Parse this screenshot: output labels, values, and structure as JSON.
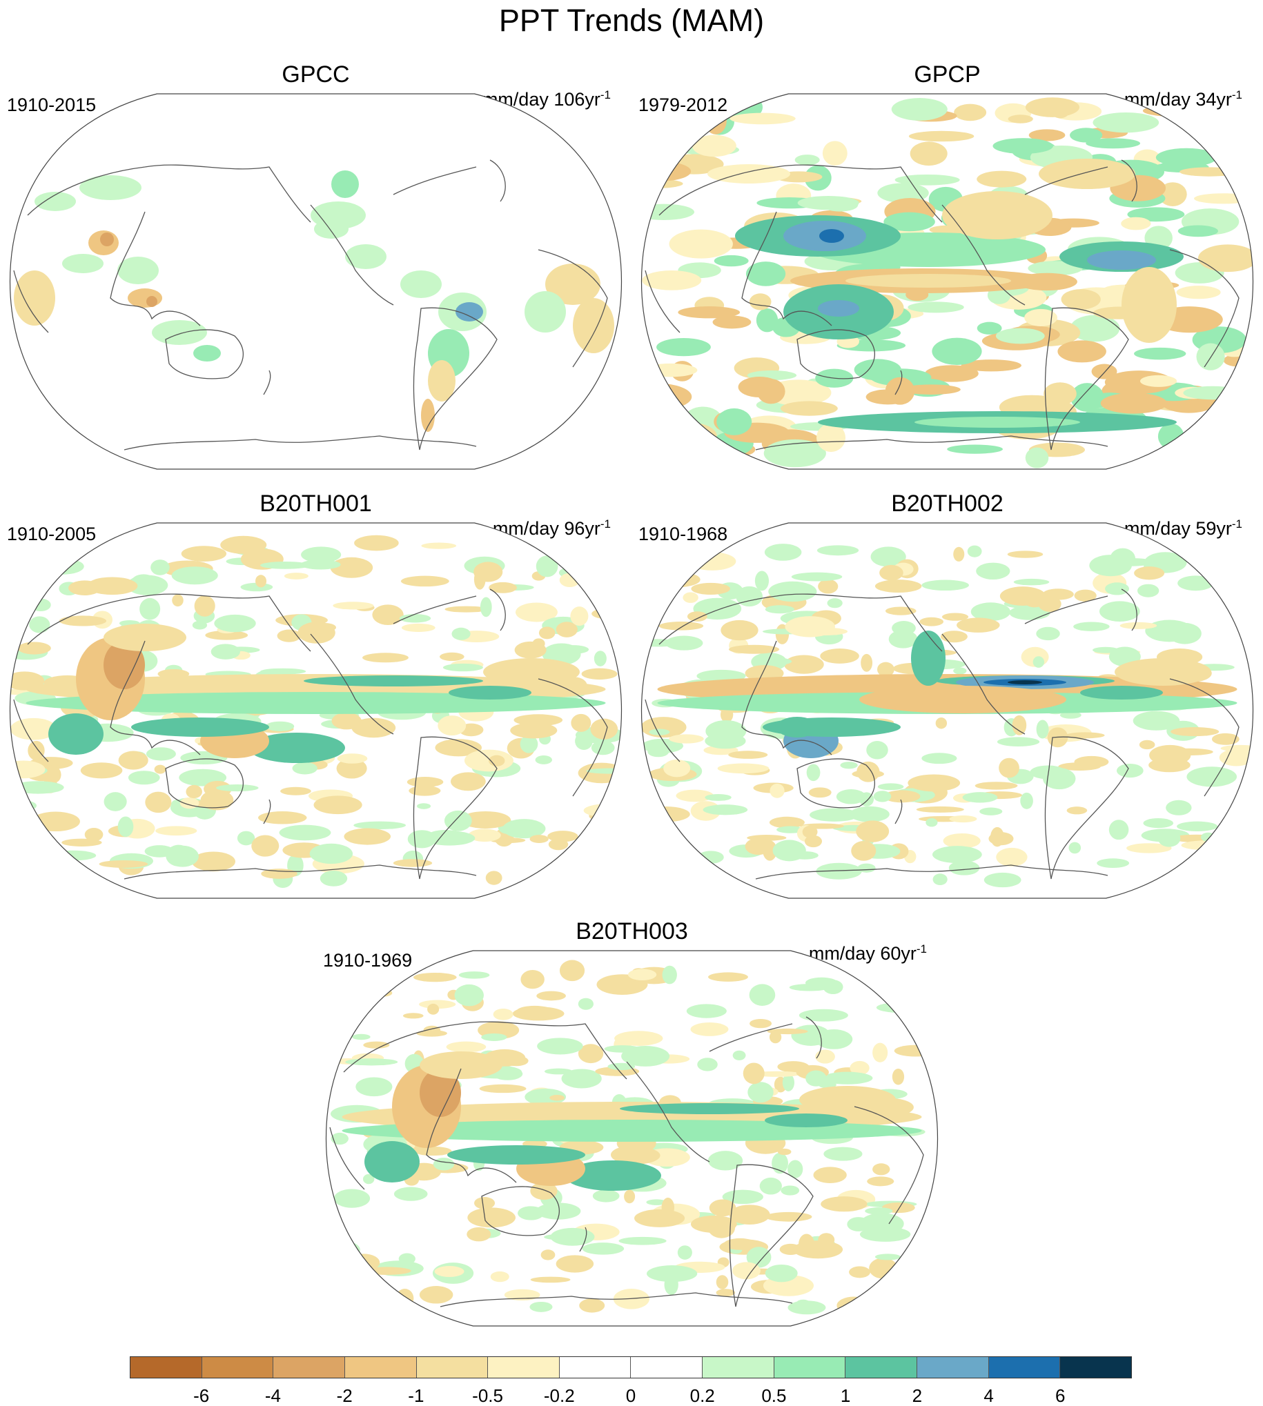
{
  "title": "PPT Trends (MAM)",
  "panels": [
    {
      "name": "GPCC",
      "period": "1910-2015",
      "units_prefix": "mm/day 106yr",
      "units_exp": "-1",
      "pattern": "gpcc"
    },
    {
      "name": "GPCP",
      "period": "1979-2012",
      "units_prefix": "mm/day 34yr",
      "units_exp": "-1",
      "pattern": "gpcp"
    },
    {
      "name": "B20TH001",
      "period": "1910-2005",
      "units_prefix": "mm/day 96yr",
      "units_exp": "-1",
      "pattern": "model"
    },
    {
      "name": "B20TH002",
      "period": "1910-1968",
      "units_prefix": "mm/day 59yr",
      "units_exp": "-1",
      "pattern": "model2"
    },
    {
      "name": "B20TH003",
      "period": "1910-1969",
      "units_prefix": "mm/day 60yr",
      "units_exp": "-1",
      "pattern": "model"
    }
  ],
  "colorbar": {
    "colors": [
      "#b5692a",
      "#cd8b45",
      "#dca464",
      "#efc682",
      "#f4dfa0",
      "#fdf2c2",
      "#ffffff",
      "#ffffff",
      "#c8f7c8",
      "#98ebb4",
      "#5cc4a0",
      "#6aa8c8",
      "#1c6fae",
      "#08344e"
    ],
    "labels": [
      "-6",
      "-4",
      "-2",
      "-1",
      "-0.5",
      "-0.2",
      "0",
      "0.2",
      "0.5",
      "1",
      "2",
      "4",
      "6"
    ]
  }
}
